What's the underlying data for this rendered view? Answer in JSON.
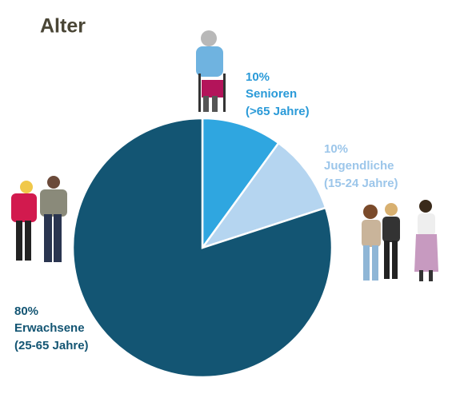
{
  "chart_data": {
    "type": "pie",
    "title": "Alter",
    "categories": [
      "Senioren",
      "Jugendliche",
      "Erwachsene"
    ],
    "age_ranges": [
      "(>65 Jahre)",
      "(15-24 Jahre)",
      "(25-65 Jahre)"
    ],
    "values": [
      10,
      10,
      80
    ],
    "value_labels": [
      "10%",
      "10%",
      "80%"
    ],
    "colors": [
      "#2fa6e0",
      "#b5d5f0",
      "#135573"
    ],
    "label_colors": [
      "#2a9ad8",
      "#9cc6ea",
      "#135573"
    ]
  }
}
